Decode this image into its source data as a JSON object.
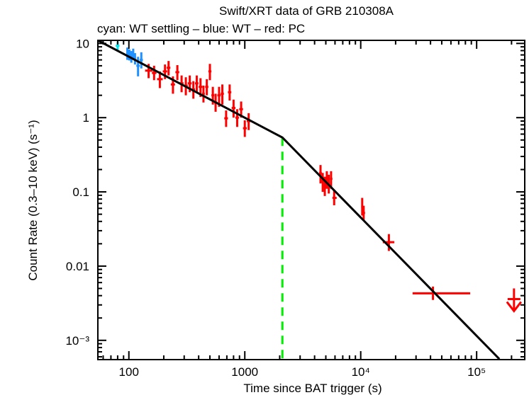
{
  "chart_data": {
    "type": "scatter",
    "title": "Swift/XRT data of GRB 210308A",
    "subtitle": "cyan: WT settling – blue: WT – red: PC",
    "xlabel": "Time since BAT trigger (s)",
    "ylabel": "Count Rate (0.3–10 keV) (s⁻¹)",
    "xscale": "log",
    "yscale": "log",
    "xlim": [
      54,
      260000
    ],
    "ylim": [
      0.00055,
      11
    ],
    "x_ticks": [
      {
        "value": 100,
        "label": "100"
      },
      {
        "value": 1000,
        "label": "1000"
      },
      {
        "value": 10000,
        "label": "10⁴"
      },
      {
        "value": 100000,
        "label": "10⁵"
      }
    ],
    "y_ticks": [
      {
        "value": 10,
        "label": "10"
      },
      {
        "value": 1,
        "label": "1"
      },
      {
        "value": 0.1,
        "label": "0.1"
      },
      {
        "value": 0.01,
        "label": "0.01"
      },
      {
        "value": 0.001,
        "label": "10⁻³"
      }
    ],
    "colors": {
      "wt_settling": "#00e5ee",
      "wt": "#1e90ff",
      "pc": "#ff0000",
      "model": "#000000",
      "break": "#00ee00"
    },
    "series": [
      {
        "name": "WT settling",
        "color_key": "wt_settling",
        "points": [
          {
            "t": 80,
            "tlo": 77,
            "thi": 83,
            "r": 9.3,
            "rlo": 8.2,
            "rhi": 10.5
          }
        ]
      },
      {
        "name": "WT",
        "color_key": "wt",
        "points": [
          {
            "t": 97,
            "tlo": 95,
            "thi": 99,
            "r": 7.4,
            "rlo": 6.0,
            "rhi": 8.8
          },
          {
            "t": 101,
            "tlo": 99,
            "thi": 103,
            "r": 7.0,
            "rlo": 5.9,
            "rhi": 8.3
          },
          {
            "t": 105,
            "tlo": 103,
            "thi": 107,
            "r": 6.6,
            "rlo": 5.5,
            "rhi": 7.9
          },
          {
            "t": 109,
            "tlo": 107,
            "thi": 111,
            "r": 7.2,
            "rlo": 6.1,
            "rhi": 8.5
          },
          {
            "t": 113,
            "tlo": 111,
            "thi": 115,
            "r": 6.2,
            "rlo": 5.2,
            "rhi": 7.4
          },
          {
            "t": 120,
            "tlo": 116,
            "thi": 124,
            "r": 5.0,
            "rlo": 3.6,
            "rhi": 6.6
          },
          {
            "t": 128,
            "tlo": 124,
            "thi": 132,
            "r": 6.0,
            "rlo": 4.6,
            "rhi": 7.6
          }
        ]
      },
      {
        "name": "PC",
        "color_key": "pc",
        "points": [
          {
            "t": 148,
            "tlo": 138,
            "thi": 160,
            "r": 4.3,
            "rlo": 3.4,
            "rhi": 5.3
          },
          {
            "t": 165,
            "tlo": 158,
            "thi": 173,
            "r": 4.0,
            "rlo": 3.2,
            "rhi": 5.0
          },
          {
            "t": 185,
            "tlo": 175,
            "thi": 196,
            "r": 3.3,
            "rlo": 2.5,
            "rhi": 4.2
          },
          {
            "t": 205,
            "tlo": 196,
            "thi": 214,
            "r": 4.2,
            "rlo": 3.3,
            "rhi": 5.2
          },
          {
            "t": 220,
            "tlo": 212,
            "thi": 228,
            "r": 4.7,
            "rlo": 3.7,
            "rhi": 5.8
          },
          {
            "t": 240,
            "tlo": 230,
            "thi": 250,
            "r": 2.8,
            "rlo": 2.1,
            "rhi": 3.6
          },
          {
            "t": 262,
            "tlo": 252,
            "thi": 272,
            "r": 4.1,
            "rlo": 3.2,
            "rhi": 5.1
          },
          {
            "t": 285,
            "tlo": 275,
            "thi": 296,
            "r": 2.9,
            "rlo": 2.2,
            "rhi": 3.7
          },
          {
            "t": 310,
            "tlo": 298,
            "thi": 322,
            "r": 2.7,
            "rlo": 2.0,
            "rhi": 3.5
          },
          {
            "t": 335,
            "tlo": 322,
            "thi": 348,
            "r": 2.9,
            "rlo": 2.2,
            "rhi": 3.7
          },
          {
            "t": 360,
            "tlo": 348,
            "thi": 372,
            "r": 2.4,
            "rlo": 1.8,
            "rhi": 3.1
          },
          {
            "t": 385,
            "tlo": 372,
            "thi": 398,
            "r": 2.9,
            "rlo": 2.2,
            "rhi": 3.7
          },
          {
            "t": 415,
            "tlo": 400,
            "thi": 430,
            "r": 2.6,
            "rlo": 1.9,
            "rhi": 3.4
          },
          {
            "t": 440,
            "tlo": 428,
            "thi": 452,
            "r": 2.1,
            "rlo": 1.6,
            "rhi": 2.7
          },
          {
            "t": 470,
            "tlo": 455,
            "thi": 485,
            "r": 2.6,
            "rlo": 2.0,
            "rhi": 3.3
          },
          {
            "t": 500,
            "tlo": 485,
            "thi": 515,
            "r": 4.2,
            "rlo": 3.2,
            "rhi": 5.3
          },
          {
            "t": 530,
            "tlo": 515,
            "thi": 545,
            "r": 2.0,
            "rlo": 1.5,
            "rhi": 2.6
          },
          {
            "t": 560,
            "tlo": 545,
            "thi": 575,
            "r": 1.6,
            "rlo": 1.2,
            "rhi": 2.1
          },
          {
            "t": 600,
            "tlo": 580,
            "thi": 620,
            "r": 2.0,
            "rlo": 1.4,
            "rhi": 2.6
          },
          {
            "t": 640,
            "tlo": 620,
            "thi": 660,
            "r": 2.1,
            "rlo": 1.5,
            "rhi": 2.8
          },
          {
            "t": 690,
            "tlo": 665,
            "thi": 715,
            "r": 0.98,
            "rlo": 0.75,
            "rhi": 1.25
          },
          {
            "t": 740,
            "tlo": 715,
            "thi": 765,
            "r": 2.2,
            "rlo": 1.7,
            "rhi": 2.8
          },
          {
            "t": 800,
            "tlo": 770,
            "thi": 830,
            "r": 1.35,
            "rlo": 1.0,
            "rhi": 1.75
          },
          {
            "t": 860,
            "tlo": 830,
            "thi": 890,
            "r": 1.0,
            "rlo": 0.75,
            "rhi": 1.3
          },
          {
            "t": 930,
            "tlo": 895,
            "thi": 965,
            "r": 1.3,
            "rlo": 1.0,
            "rhi": 1.65
          },
          {
            "t": 1000,
            "tlo": 965,
            "thi": 1040,
            "r": 0.72,
            "rlo": 0.55,
            "rhi": 0.92
          },
          {
            "t": 1080,
            "tlo": 1040,
            "thi": 1120,
            "r": 0.9,
            "rlo": 0.68,
            "rhi": 1.15
          },
          {
            "t": 4500,
            "tlo": 4380,
            "thi": 4620,
            "r": 0.18,
            "rlo": 0.13,
            "rhi": 0.23
          },
          {
            "t": 4700,
            "tlo": 4600,
            "thi": 4800,
            "r": 0.14,
            "rlo": 0.1,
            "rhi": 0.18
          },
          {
            "t": 4900,
            "tlo": 4800,
            "thi": 5000,
            "r": 0.12,
            "rlo": 0.088,
            "rhi": 0.16
          },
          {
            "t": 5100,
            "tlo": 5000,
            "thi": 5200,
            "r": 0.15,
            "rlo": 0.11,
            "rhi": 0.19
          },
          {
            "t": 5300,
            "tlo": 5200,
            "thi": 5420,
            "r": 0.13,
            "rlo": 0.095,
            "rhi": 0.17
          },
          {
            "t": 5550,
            "tlo": 5420,
            "thi": 5700,
            "r": 0.15,
            "rlo": 0.11,
            "rhi": 0.19
          },
          {
            "t": 5900,
            "tlo": 5700,
            "thi": 6200,
            "r": 0.083,
            "rlo": 0.066,
            "rhi": 0.105
          },
          {
            "t": 10300,
            "tlo": 10100,
            "thi": 10500,
            "r": 0.063,
            "rlo": 0.048,
            "rhi": 0.083
          },
          {
            "t": 10600,
            "tlo": 10400,
            "thi": 10900,
            "r": 0.052,
            "rlo": 0.042,
            "rhi": 0.065
          },
          {
            "t": 17500,
            "tlo": 15500,
            "thi": 19500,
            "r": 0.021,
            "rlo": 0.016,
            "rhi": 0.027
          },
          {
            "t": 42000,
            "tlo": 28000,
            "thi": 88000,
            "r": 0.0043,
            "rlo": 0.0035,
            "rhi": 0.0053
          }
        ],
        "upper_limits": [
          {
            "t": 210000,
            "r": 0.0036
          }
        ]
      }
    ],
    "model": {
      "type": "broken power law",
      "points": [
        {
          "t": 54,
          "r": 11
        },
        {
          "t": 2110,
          "r": 0.54
        },
        {
          "t": 157000,
          "r": 0.00056
        }
      ]
    },
    "break_line": {
      "t": 2110,
      "r": 0.54
    },
    "grid": false,
    "legend": "top-left subtitle"
  }
}
